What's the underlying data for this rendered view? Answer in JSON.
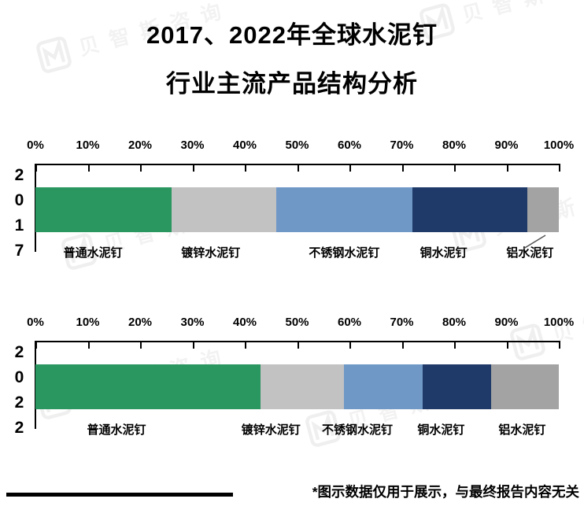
{
  "title": {
    "line1": "2017、2022年全球水泥钉",
    "line2": "行业主流产品结构分析"
  },
  "watermark": {
    "text": "贝智斯咨询"
  },
  "footer": {
    "note": "*图示数据仅用于展示，与最终报告内容无关"
  },
  "chart_data": [
    {
      "type": "bar",
      "variant": "horizontal-stacked",
      "y_category": "2017",
      "xlim": [
        0,
        100
      ],
      "x_ticks": [
        "0%",
        "10%",
        "20%",
        "30%",
        "40%",
        "50%",
        "60%",
        "70%",
        "80%",
        "90%",
        "100%"
      ],
      "grid": false,
      "legend_position": "below-bar",
      "series": [
        {
          "name": "普通水泥钉",
          "value": 26,
          "color": "#2a9660",
          "label_x_pct": 11
        },
        {
          "name": "镀锌水泥钉",
          "value": 20,
          "color": "#c2c2c2",
          "label_x_pct": 33.5
        },
        {
          "name": "不锈钢水泥钉",
          "value": 26,
          "color": "#6f98c7",
          "label_x_pct": 59
        },
        {
          "name": "铜水泥钉",
          "value": 22,
          "color": "#1f3a68",
          "label_x_pct": 78
        },
        {
          "name": "铝水泥钉",
          "value": 6,
          "color": "#a3a3a3",
          "label_x_pct": 94.5
        }
      ],
      "leader_line": true
    },
    {
      "type": "bar",
      "variant": "horizontal-stacked",
      "y_category": "2022",
      "xlim": [
        0,
        100
      ],
      "x_ticks": [
        "0%",
        "10%",
        "20%",
        "30%",
        "40%",
        "50%",
        "60%",
        "70%",
        "80%",
        "90%",
        "100%"
      ],
      "grid": false,
      "legend_position": "below-bar",
      "series": [
        {
          "name": "普通水泥钉",
          "value": 43,
          "color": "#2a9660",
          "label_x_pct": 15.5
        },
        {
          "name": "镀锌水泥钉",
          "value": 16,
          "color": "#c2c2c2",
          "label_x_pct": 45
        },
        {
          "name": "不锈钢水泥钉",
          "value": 15,
          "color": "#6f98c7",
          "label_x_pct": 61.5
        },
        {
          "name": "铜水泥钉",
          "value": 13,
          "color": "#1f3a68",
          "label_x_pct": 77.5
        },
        {
          "name": "铝水泥钉",
          "value": 13,
          "color": "#a3a3a3",
          "label_x_pct": 93
        }
      ],
      "leader_line": false
    }
  ]
}
